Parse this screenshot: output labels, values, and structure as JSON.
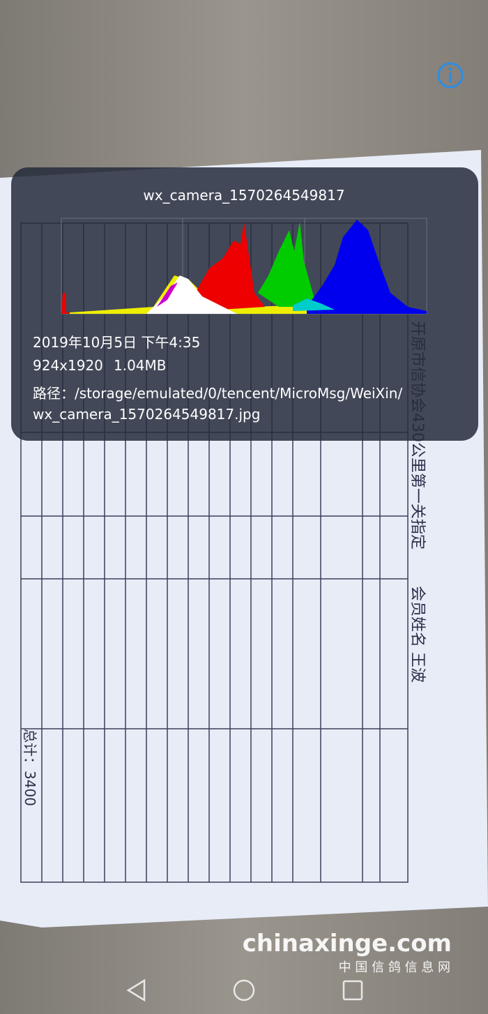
{
  "info_panel": {
    "file_name": "wx_camera_1570264549817",
    "date_time": "2019年10月5日 下午4:35",
    "resolution": "924x1920",
    "file_size": "1.04MB",
    "path_lines": [
      "路径：/storage/emulated/0/tencent/MicroMsg/WeiXin/",
      "wx_camera_1570264549817.jpg"
    ]
  },
  "photo": {
    "form_title": "开原市信协会430公里第一关指定",
    "member": "会员姓名 王波",
    "total": "总计：3400"
  },
  "watermark": {
    "site": "chinaxinge.com",
    "name": "中 国 信 鸽 信 息 网"
  }
}
